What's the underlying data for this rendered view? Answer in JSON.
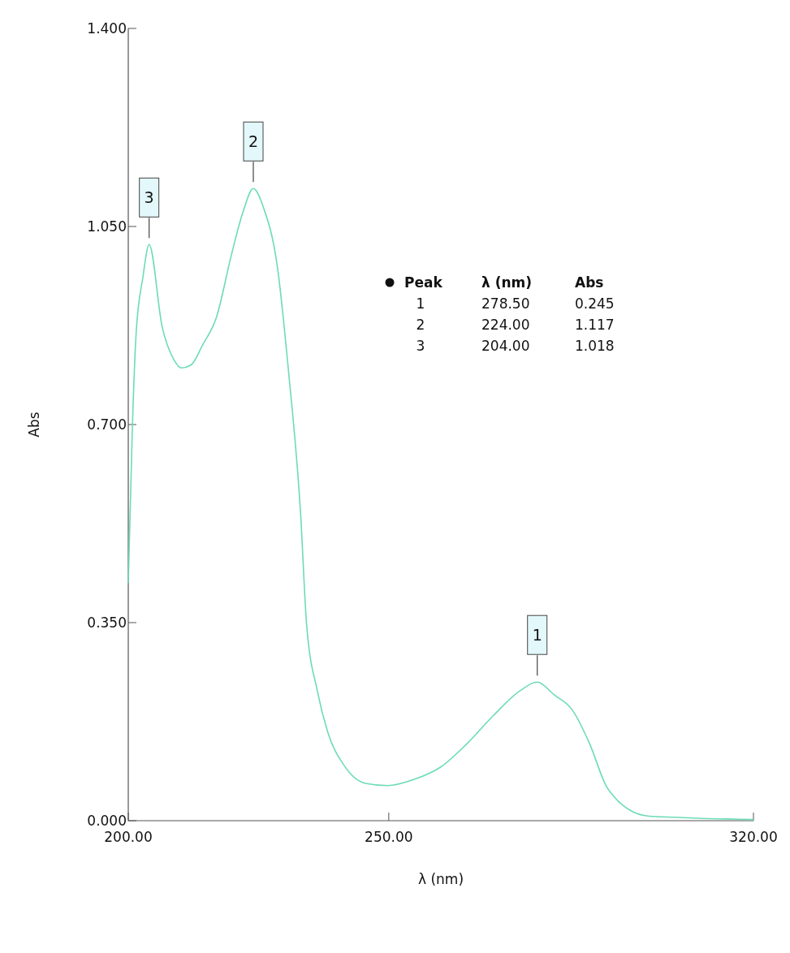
{
  "chart_data": {
    "type": "line",
    "xlabel": "λ (nm)",
    "ylabel": "Abs",
    "x": [
      200,
      200.8,
      201.5,
      202.8,
      204,
      206.5,
      208.8,
      210.2,
      212,
      214.3,
      216.9,
      219.8,
      222,
      224,
      226,
      228.6,
      230.8,
      233.1,
      234.2,
      236.3,
      238.3,
      241.4,
      245.5,
      249.8,
      254.9,
      260,
      264.9,
      270,
      275.1,
      278.5,
      281.8,
      285.2,
      288.6,
      291.7,
      294,
      297,
      300,
      305,
      310,
      315,
      320
    ],
    "series": [
      {
        "color": "#6cdcb4",
        "values": [
          0.42,
          0.7,
          0.86,
          0.96,
          1.018,
          0.873,
          0.814,
          0.8,
          0.805,
          0.841,
          0.889,
          1.0,
          1.075,
          1.117,
          1.082,
          0.98,
          0.79,
          0.539,
          0.35,
          0.229,
          0.156,
          0.098,
          0.066,
          0.062,
          0.073,
          0.095,
          0.135,
          0.185,
          0.229,
          0.245,
          0.222,
          0.196,
          0.135,
          0.062,
          0.035,
          0.015,
          0.008,
          0.006,
          0.004,
          0.003,
          0.002
        ]
      }
    ],
    "xlim": [
      200,
      320
    ],
    "ylim": [
      0,
      1.4
    ],
    "xticks": [
      {
        "value": 200,
        "label": "200.00"
      },
      {
        "value": 250,
        "label": "250.00"
      },
      {
        "value": 320,
        "label": "320.00"
      }
    ],
    "yticks": [
      {
        "value": 0,
        "label": "0.000"
      },
      {
        "value": 0.35,
        "label": "0.350"
      },
      {
        "value": 0.7,
        "label": "0.700"
      },
      {
        "value": 1.05,
        "label": "1.050"
      },
      {
        "value": 1.4,
        "label": "1.400"
      }
    ],
    "grid": false,
    "marker": "none",
    "line_style": "solid",
    "annotations": [
      {
        "text": "1",
        "x": 278.5,
        "y": 0.245
      },
      {
        "text": "2",
        "x": 224,
        "y": 1.117
      },
      {
        "text": "3",
        "x": 204,
        "y": 1.018
      },
      "Peak",
      "λ (nm)",
      "Abs",
      "1",
      "278.50",
      "0.245",
      "2",
      "224.00",
      "1.117",
      "3",
      "204.00",
      "1.018"
    ]
  }
}
